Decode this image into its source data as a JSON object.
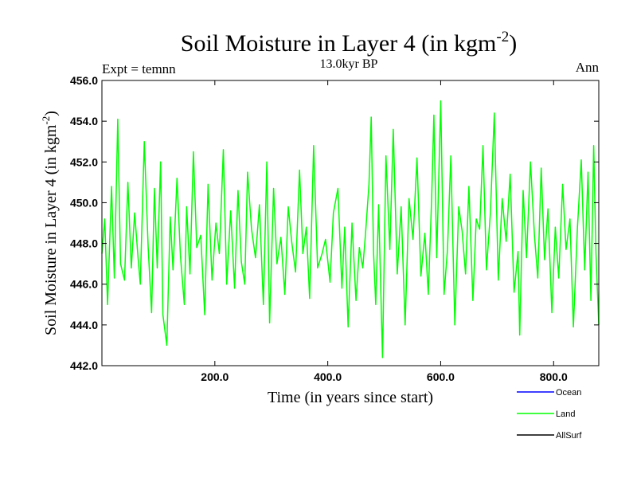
{
  "chart_data": {
    "type": "line",
    "title_main": "Soil Moisture in Layer 4 (in kgm",
    "title_sup": "-2",
    "title_close": ")",
    "subtitle": "13.0kyr BP",
    "left_label": "Expt = temnn",
    "right_label": "Ann",
    "xlabel": "Time (in years since start)",
    "ylabel_main": "Soil Moisture in Layer 4 (in kgm",
    "ylabel_sup": "-2",
    "ylabel_close": ")",
    "xlim": [
      0,
      880
    ],
    "ylim": [
      442,
      456
    ],
    "x_ticks": [
      200,
      400,
      600,
      800
    ],
    "x_tick_labels": [
      "200.0",
      "400.0",
      "600.0",
      "800.0"
    ],
    "y_ticks": [
      442,
      444,
      446,
      448,
      450,
      452,
      454,
      456
    ],
    "y_tick_labels": [
      "442.0",
      "444.0",
      "446.0",
      "448.0",
      "450.0",
      "452.0",
      "454.0",
      "456.0"
    ],
    "legend": [
      {
        "name": "Ocean",
        "color": "#0000ff"
      },
      {
        "name": "Land",
        "color": "#00ff00"
      },
      {
        "name": "AllSurf",
        "color": "#000000"
      }
    ],
    "series": [
      {
        "name": "Land",
        "color": "#00ff00",
        "x": [
          0,
          5,
          10,
          17,
          22,
          28,
          33,
          40,
          46,
          52,
          58,
          64,
          68,
          75,
          82,
          88,
          93,
          98,
          104,
          108,
          115,
          121,
          126,
          133,
          139,
          146,
          150,
          156,
          162,
          168,
          175,
          182,
          188,
          195,
          202,
          208,
          215,
          221,
          228,
          235,
          241,
          247,
          253,
          258,
          265,
          272,
          279,
          286,
          292,
          297,
          304,
          310,
          317,
          324,
          330,
          336,
          343,
          350,
          356,
          362,
          368,
          375,
          382,
          390,
          396,
          404,
          410,
          418,
          425,
          430,
          436,
          443,
          450,
          456,
          462,
          467,
          473,
          477,
          481,
          485,
          490,
          497,
          503,
          510,
          516,
          523,
          530,
          537,
          544,
          551,
          558,
          565,
          572,
          578,
          584,
          588,
          593,
          600,
          606,
          612,
          618,
          625,
          632,
          638,
          644,
          650,
          657,
          663,
          669,
          675,
          681,
          688,
          695,
          702,
          709,
          716,
          723,
          730,
          737,
          740,
          746,
          752,
          759,
          766,
          772,
          778,
          784,
          790,
          797,
          803,
          809,
          816,
          822,
          829,
          835,
          842,
          849,
          855,
          861,
          866,
          871,
          875,
          880
        ],
        "y": [
          447.5,
          449.2,
          445.0,
          450.8,
          446.3,
          454.1,
          447.0,
          446.2,
          451.0,
          446.8,
          449.5,
          447.3,
          446.0,
          453.0,
          447.8,
          444.6,
          450.7,
          446.8,
          452.0,
          444.5,
          443.0,
          449.3,
          446.7,
          451.2,
          447.4,
          445.0,
          449.8,
          446.5,
          452.5,
          447.8,
          448.4,
          444.5,
          450.9,
          446.2,
          449.0,
          447.5,
          452.6,
          446.0,
          449.6,
          445.8,
          450.6,
          447.1,
          446.0,
          451.5,
          448.7,
          447.3,
          449.9,
          445.0,
          452.0,
          444.1,
          450.7,
          447.0,
          448.3,
          445.5,
          449.8,
          448.1,
          446.6,
          451.6,
          447.5,
          448.8,
          445.3,
          452.8,
          446.8,
          447.5,
          448.2,
          446.1,
          449.5,
          450.7,
          445.8,
          448.8,
          443.9,
          449.0,
          445.2,
          447.8,
          446.8,
          448.5,
          450.9,
          454.2,
          447.6,
          445.0,
          449.9,
          442.4,
          452.3,
          447.7,
          453.6,
          446.5,
          449.8,
          444.0,
          450.2,
          448.2,
          452.2,
          446.4,
          448.5,
          445.5,
          450.2,
          454.3,
          447.3,
          455.0,
          445.5,
          447.7,
          452.3,
          444.0,
          449.8,
          448.6,
          446.5,
          450.8,
          445.2,
          449.2,
          448.7,
          452.8,
          446.7,
          449.5,
          454.4,
          446.2,
          450.2,
          448.1,
          451.4,
          445.6,
          447.6,
          443.5,
          450.6,
          447.3,
          452.0,
          448.4,
          446.3,
          451.7,
          447.2,
          449.7,
          444.6,
          448.8,
          446.3,
          450.9,
          447.7,
          449.2,
          443.9,
          448.7,
          452.1,
          446.7,
          451.5,
          445.2,
          452.8,
          447.5,
          444.0
        ]
      }
    ]
  }
}
